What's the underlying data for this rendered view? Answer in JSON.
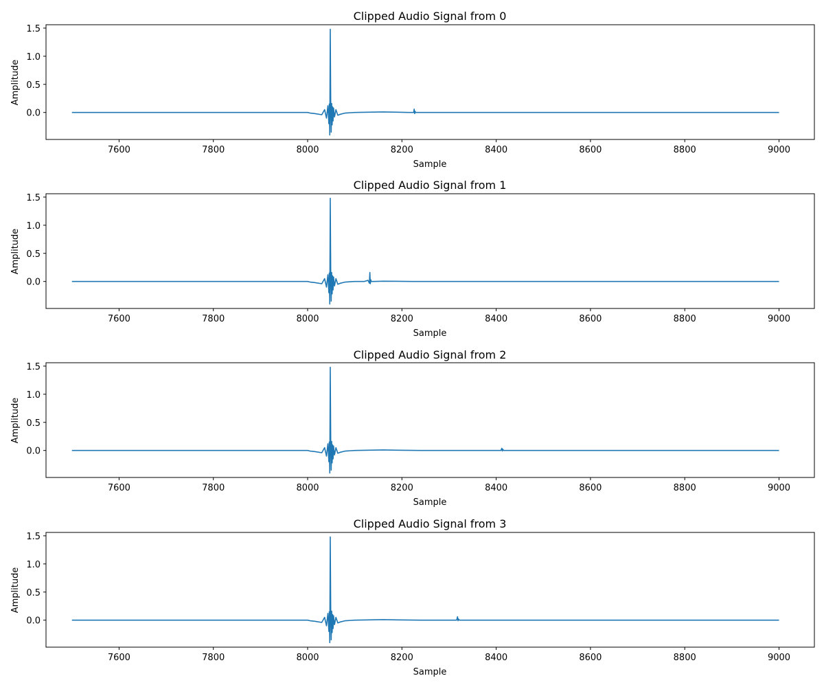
{
  "chart_data": [
    {
      "type": "line",
      "title": "Clipped Audio Signal from 0",
      "xlabel": "Sample",
      "ylabel": "Amplitude",
      "xlim": [
        7445,
        9075
      ],
      "ylim": [
        -0.48,
        1.56
      ],
      "xticks": [
        7600,
        7800,
        8000,
        8200,
        8400,
        8600,
        8800,
        9000
      ],
      "yticks": [
        0.0,
        0.5,
        1.0,
        1.5
      ],
      "xtick_labels": [
        "7600",
        "7800",
        "8000",
        "8200",
        "8400",
        "8600",
        "8800",
        "9000"
      ],
      "ytick_labels": [
        "0.0",
        "0.5",
        "1.0",
        "1.5"
      ],
      "grid": false,
      "series": [
        {
          "color": "#1f77b4",
          "x": [
            7500,
            8000,
            8005,
            8015,
            8030,
            8036,
            8040,
            8043,
            8045,
            8046,
            8047,
            8048,
            8049,
            8050,
            8051,
            8052,
            8053,
            8054,
            8055,
            8057,
            8060,
            8064,
            8070,
            8080,
            8090,
            8100,
            8130,
            8160,
            8190,
            8215,
            8225,
            8226,
            8227,
            8228,
            8229,
            8230,
            8240,
            8300,
            8400,
            9000
          ],
          "y": [
            0.0,
            0.0,
            -0.01,
            -0.02,
            -0.04,
            0.05,
            -0.1,
            0.12,
            -0.2,
            0.15,
            -0.4,
            1.48,
            0.18,
            -0.35,
            0.16,
            -0.22,
            0.1,
            -0.15,
            0.08,
            -0.08,
            0.05,
            -0.05,
            -0.03,
            -0.01,
            -0.005,
            0.0,
            0.005,
            0.01,
            0.005,
            0.0,
            0.0,
            0.06,
            -0.02,
            0.02,
            0.0,
            0.0,
            0.0,
            0.0,
            0.0,
            0.0
          ]
        }
      ]
    },
    {
      "type": "line",
      "title": "Clipped Audio Signal from 1",
      "xlabel": "Sample",
      "ylabel": "Amplitude",
      "xlim": [
        7445,
        9075
      ],
      "ylim": [
        -0.48,
        1.56
      ],
      "xticks": [
        7600,
        7800,
        8000,
        8200,
        8400,
        8600,
        8800,
        9000
      ],
      "yticks": [
        0.0,
        0.5,
        1.0,
        1.5
      ],
      "xtick_labels": [
        "7600",
        "7800",
        "8000",
        "8200",
        "8400",
        "8600",
        "8800",
        "9000"
      ],
      "ytick_labels": [
        "0.0",
        "0.5",
        "1.0",
        "1.5"
      ],
      "grid": false,
      "series": [
        {
          "color": "#1f77b4",
          "x": [
            7500,
            8000,
            8005,
            8015,
            8030,
            8036,
            8040,
            8043,
            8045,
            8046,
            8047,
            8048,
            8049,
            8050,
            8051,
            8052,
            8053,
            8054,
            8055,
            8057,
            8060,
            8064,
            8070,
            8080,
            8100,
            8120,
            8128,
            8131,
            8132,
            8133,
            8134,
            8135,
            8140,
            8160,
            8190,
            8220,
            8300,
            9000
          ],
          "y": [
            0.0,
            0.0,
            -0.01,
            -0.02,
            -0.04,
            0.05,
            -0.1,
            0.12,
            -0.2,
            0.15,
            -0.4,
            1.48,
            0.18,
            -0.35,
            0.16,
            -0.22,
            0.1,
            -0.15,
            0.08,
            -0.08,
            0.05,
            -0.05,
            -0.03,
            -0.01,
            0.0,
            0.0,
            0.02,
            -0.03,
            0.16,
            -0.04,
            0.03,
            0.0,
            0.0,
            0.005,
            0.003,
            0.0,
            0.0,
            0.0
          ]
        }
      ]
    },
    {
      "type": "line",
      "title": "Clipped Audio Signal from 2",
      "xlabel": "Sample",
      "ylabel": "Amplitude",
      "xlim": [
        7445,
        9075
      ],
      "ylim": [
        -0.48,
        1.56
      ],
      "xticks": [
        7600,
        7800,
        8000,
        8200,
        8400,
        8600,
        8800,
        9000
      ],
      "yticks": [
        0.0,
        0.5,
        1.0,
        1.5
      ],
      "xtick_labels": [
        "7600",
        "7800",
        "8000",
        "8200",
        "8400",
        "8600",
        "8800",
        "9000"
      ],
      "ytick_labels": [
        "0.0",
        "0.5",
        "1.0",
        "1.5"
      ],
      "grid": false,
      "series": [
        {
          "color": "#1f77b4",
          "x": [
            7500,
            8000,
            8005,
            8015,
            8030,
            8036,
            8040,
            8043,
            8045,
            8046,
            8047,
            8048,
            8049,
            8050,
            8051,
            8052,
            8053,
            8054,
            8055,
            8057,
            8060,
            8064,
            8070,
            8080,
            8090,
            8100,
            8130,
            8160,
            8190,
            8240,
            8410,
            8412,
            8413,
            8414,
            8416,
            8450,
            9000
          ],
          "y": [
            0.0,
            0.0,
            -0.01,
            -0.02,
            -0.04,
            0.05,
            -0.1,
            0.12,
            -0.2,
            0.15,
            -0.4,
            1.48,
            0.18,
            -0.35,
            0.16,
            -0.22,
            0.1,
            -0.15,
            0.08,
            -0.08,
            0.05,
            -0.05,
            -0.03,
            -0.01,
            -0.005,
            0.0,
            0.005,
            0.01,
            0.005,
            0.0,
            0.0,
            0.04,
            -0.01,
            0.02,
            0.0,
            0.0,
            0.0
          ]
        }
      ]
    },
    {
      "type": "line",
      "title": "Clipped Audio Signal from 3",
      "xlabel": "Sample",
      "ylabel": "Amplitude",
      "xlim": [
        7445,
        9075
      ],
      "ylim": [
        -0.48,
        1.56
      ],
      "xticks": [
        7600,
        7800,
        8000,
        8200,
        8400,
        8600,
        8800,
        9000
      ],
      "yticks": [
        0.0,
        0.5,
        1.0,
        1.5
      ],
      "xtick_labels": [
        "7600",
        "7800",
        "8000",
        "8200",
        "8400",
        "8600",
        "8800",
        "9000"
      ],
      "ytick_labels": [
        "0.0",
        "0.5",
        "1.0",
        "1.5"
      ],
      "grid": false,
      "series": [
        {
          "color": "#1f77b4",
          "x": [
            7500,
            8000,
            8005,
            8015,
            8030,
            8036,
            8040,
            8043,
            8045,
            8046,
            8047,
            8048,
            8049,
            8050,
            8051,
            8052,
            8053,
            8054,
            8055,
            8057,
            8060,
            8064,
            8070,
            8080,
            8090,
            8100,
            8130,
            8160,
            8190,
            8240,
            8316,
            8318,
            8319,
            8320,
            8322,
            8350,
            9000
          ],
          "y": [
            0.0,
            0.0,
            -0.01,
            -0.02,
            -0.04,
            0.05,
            -0.1,
            0.12,
            -0.2,
            0.15,
            -0.4,
            1.48,
            0.18,
            -0.35,
            0.16,
            -0.22,
            0.1,
            -0.15,
            0.08,
            -0.08,
            0.05,
            -0.05,
            -0.03,
            -0.01,
            -0.005,
            0.0,
            0.005,
            0.01,
            0.005,
            0.0,
            0.0,
            0.06,
            -0.01,
            0.02,
            0.0,
            0.0,
            0.0
          ]
        }
      ]
    }
  ]
}
